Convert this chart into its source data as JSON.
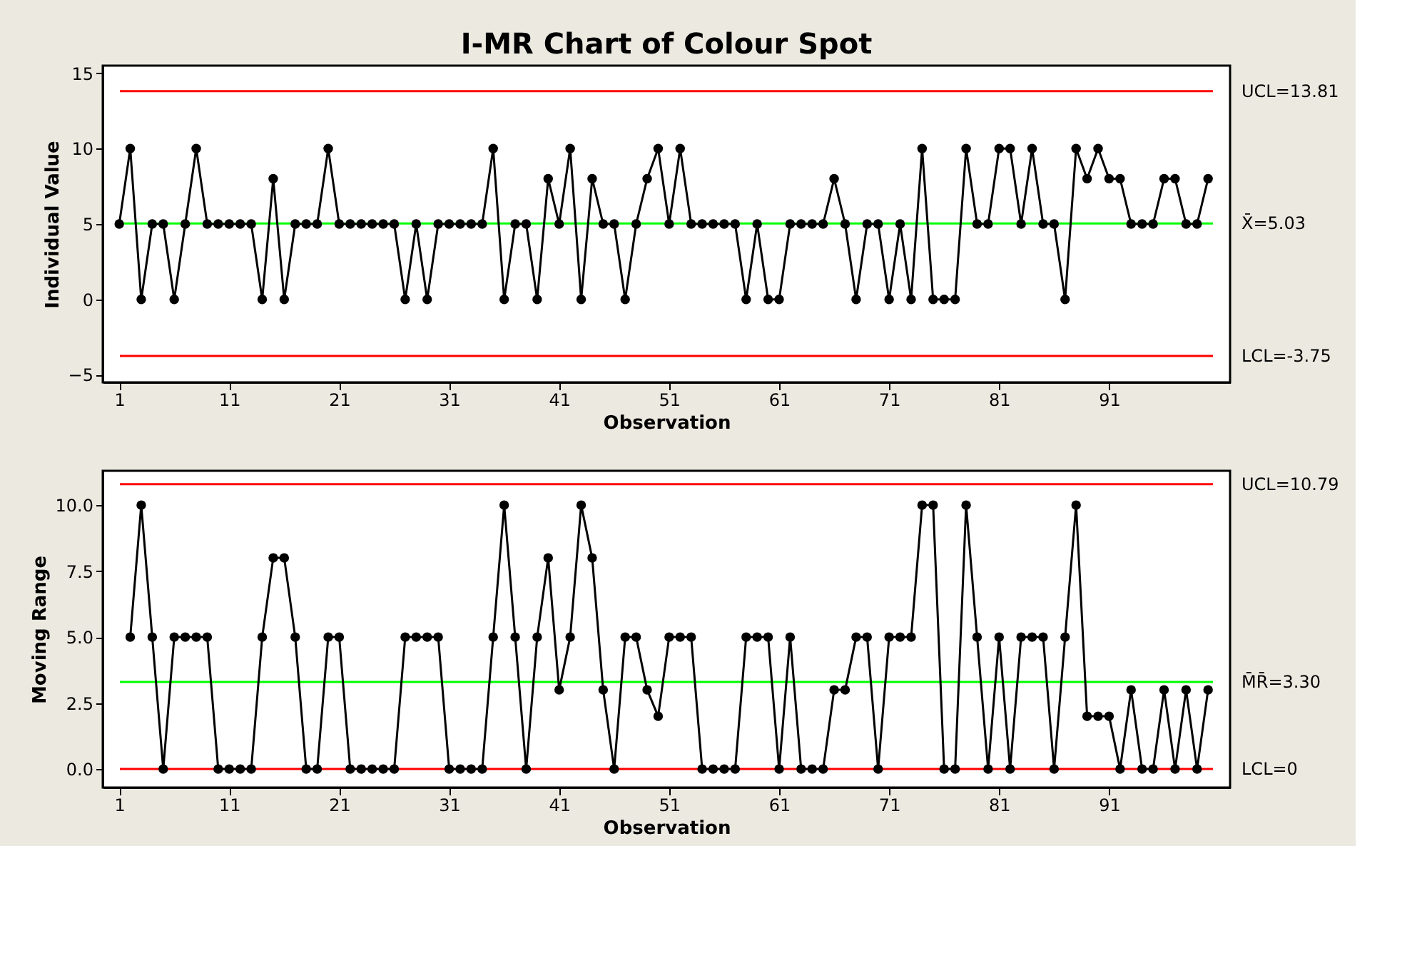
{
  "chart_data": [
    {
      "type": "line",
      "title": "I-MR Chart of Colour Spot",
      "xlabel": "Observation",
      "ylabel": "Individual Value",
      "marker": "circle",
      "grid": false,
      "x": [
        1,
        2,
        3,
        4,
        5,
        6,
        7,
        8,
        9,
        10,
        11,
        12,
        13,
        14,
        15,
        16,
        17,
        18,
        19,
        20,
        21,
        22,
        23,
        24,
        25,
        26,
        27,
        28,
        29,
        30,
        31,
        32,
        33,
        34,
        35,
        36,
        37,
        38,
        39,
        40,
        41,
        42,
        43,
        44,
        45,
        46,
        47,
        48,
        49,
        50,
        51,
        52,
        53,
        54,
        55,
        56,
        57,
        58,
        59,
        60,
        61,
        62,
        63,
        64,
        65,
        66,
        67,
        68,
        69,
        70,
        71,
        72,
        73,
        74,
        75,
        76,
        77,
        78,
        79,
        80,
        81,
        82,
        83,
        84,
        85,
        86,
        87,
        88,
        89,
        90,
        91,
        92,
        93,
        94,
        95,
        96,
        97,
        98,
        99,
        100
      ],
      "series": [
        {
          "color": "#000000",
          "values": [
            5,
            10,
            0,
            5,
            5,
            0,
            5,
            10,
            5,
            5,
            5,
            5,
            5,
            0,
            8,
            0,
            5,
            5,
            5,
            10,
            5,
            5,
            5,
            5,
            5,
            5,
            0,
            5,
            0,
            5,
            5,
            5,
            5,
            5,
            10,
            0,
            5,
            5,
            0,
            8,
            5,
            10,
            0,
            8,
            5,
            5,
            0,
            5,
            8,
            10,
            5,
            10,
            5,
            5,
            5,
            5,
            5,
            0,
            5,
            0,
            0,
            5,
            5,
            5,
            5,
            8,
            5,
            0,
            5,
            5,
            0,
            5,
            0,
            10,
            0,
            0,
            0,
            10,
            5,
            5,
            10,
            10,
            5,
            10,
            5,
            5,
            0,
            10,
            8,
            10,
            8,
            8,
            5,
            5,
            5,
            8,
            8,
            5,
            5,
            8
          ]
        }
      ],
      "xlim": [
        -0.5,
        102
      ],
      "xticks": [
        1,
        11,
        21,
        31,
        41,
        51,
        61,
        71,
        81,
        91
      ],
      "ylim": [
        -5.5,
        15.5
      ],
      "yticks": [
        -5,
        0,
        5,
        10,
        15
      ],
      "ref_lines": [
        {
          "axis": "y",
          "value": 13.81,
          "label": "UCL=13.81",
          "color": "#ff0000"
        },
        {
          "axis": "y",
          "value": 5.03,
          "label": "X̄=5.03",
          "color": "#00ff00"
        },
        {
          "axis": "y",
          "value": -3.75,
          "label": "LCL=-3.75",
          "color": "#ff0000"
        }
      ]
    },
    {
      "type": "line",
      "xlabel": "Observation",
      "ylabel": "Moving Range",
      "marker": "circle",
      "grid": false,
      "x": [
        2,
        3,
        4,
        5,
        6,
        7,
        8,
        9,
        10,
        11,
        12,
        13,
        14,
        15,
        16,
        17,
        18,
        19,
        20,
        21,
        22,
        23,
        24,
        25,
        26,
        27,
        28,
        29,
        30,
        31,
        32,
        33,
        34,
        35,
        36,
        37,
        38,
        39,
        40,
        41,
        42,
        43,
        44,
        45,
        46,
        47,
        48,
        49,
        50,
        51,
        52,
        53,
        54,
        55,
        56,
        57,
        58,
        59,
        60,
        61,
        62,
        63,
        64,
        65,
        66,
        67,
        68,
        69,
        70,
        71,
        72,
        73,
        74,
        75,
        76,
        77,
        78,
        79,
        80,
        81,
        82,
        83,
        84,
        85,
        86,
        87,
        88,
        89,
        90,
        91,
        92,
        93,
        94,
        95,
        96,
        97,
        98,
        99,
        100
      ],
      "series": [
        {
          "color": "#000000",
          "values": [
            5,
            10,
            5,
            0,
            5,
            5,
            5,
            5,
            0,
            0,
            0,
            0,
            5,
            8,
            8,
            5,
            0,
            0,
            5,
            5,
            0,
            0,
            0,
            0,
            0,
            5,
            5,
            5,
            5,
            0,
            0,
            0,
            0,
            5,
            10,
            5,
            0,
            5,
            8,
            3,
            5,
            10,
            8,
            3,
            0,
            5,
            5,
            3,
            2,
            5,
            5,
            5,
            0,
            0,
            0,
            0,
            5,
            5,
            5,
            0,
            5,
            0,
            0,
            0,
            3,
            3,
            5,
            5,
            0,
            5,
            5,
            5,
            10,
            10,
            0,
            0,
            10,
            5,
            0,
            5,
            0,
            5,
            5,
            5,
            0,
            5,
            10,
            2,
            2,
            2,
            0,
            3,
            0,
            0,
            3,
            0,
            3,
            0,
            3
          ]
        }
      ],
      "xlim": [
        -0.5,
        102
      ],
      "xticks": [
        1,
        11,
        21,
        31,
        41,
        51,
        61,
        71,
        81,
        91
      ],
      "ylim": [
        -0.7,
        11.3
      ],
      "yticks": [
        {
          "value": 0,
          "label": "0.0"
        },
        {
          "value": 2.5,
          "label": "2.5"
        },
        {
          "value": 5,
          "label": "5.0"
        },
        {
          "value": 7.5,
          "label": "7.5"
        },
        {
          "value": 10,
          "label": "10.0"
        }
      ],
      "ref_lines": [
        {
          "axis": "y",
          "value": 10.79,
          "label": "UCL=10.79",
          "color": "#ff0000"
        },
        {
          "axis": "y",
          "value": 3.3,
          "label": "M̄R̄=3.30",
          "color": "#00ff00"
        },
        {
          "axis": "y",
          "value": 0,
          "label": "LCL=0",
          "color": "#ff0000"
        }
      ]
    }
  ]
}
